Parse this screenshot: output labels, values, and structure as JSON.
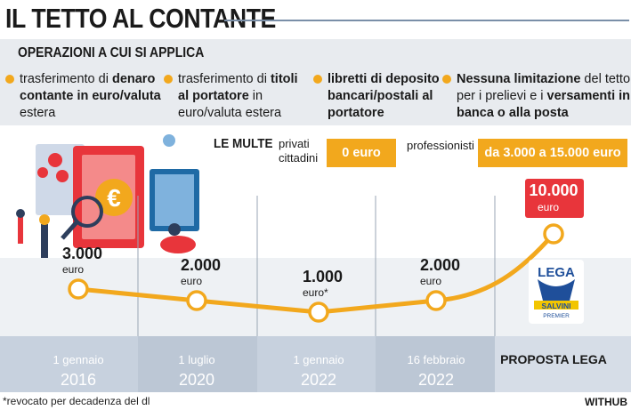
{
  "title": "IL TETTO AL CONTANTE",
  "operations": {
    "heading": "OPERAZIONI A CUI SI APPLICA",
    "items": [
      {
        "pre": "trasferimento di ",
        "bold": "denaro contante in euro/valuta",
        "post": " estera"
      },
      {
        "pre": "trasferimento di ",
        "bold": "titoli al portatore",
        "post": " in euro/valuta estera"
      },
      {
        "pre": "",
        "bold": "libretti di deposito bancari/postali al portatore",
        "post": ""
      },
      {
        "pre": "",
        "bold": "Nessuna limitazione",
        "post": " del tetto per i prelievi e i ",
        "bold2": "versamenti in banca o alla posta"
      }
    ]
  },
  "fines": {
    "label": "LE MULTE",
    "private_label": "privati cittadini",
    "private_value": "0 euro",
    "professional_label": "professionisti",
    "professional_value": "da 3.000 a 15.000 euro"
  },
  "chart_data": {
    "type": "line",
    "categories": [
      "1 gennaio 2016",
      "1 luglio 2020",
      "1 gennaio 2022",
      "16 febbraio 2022",
      "PROPOSTA LEGA"
    ],
    "x_labels": [
      {
        "line1": "1 gennaio",
        "line2": "2016"
      },
      {
        "line1": "1 luglio",
        "line2": "2020"
      },
      {
        "line1": "1 gennaio",
        "line2": "2022"
      },
      {
        "line1": "16 febbraio",
        "line2": "2022"
      },
      {
        "line1": "PROPOSTA LEGA",
        "line2": ""
      }
    ],
    "series": [
      {
        "values": [
          3000,
          2000,
          1000,
          2000,
          10000
        ]
      }
    ],
    "value_labels": [
      {
        "value": "3.000",
        "unit": "euro"
      },
      {
        "value": "2.000",
        "unit": "euro"
      },
      {
        "value": "1.000",
        "unit": "euro*"
      },
      {
        "value": "2.000",
        "unit": "euro"
      },
      {
        "value": "10.000",
        "unit": "euro"
      }
    ]
  },
  "lega_logo": {
    "top": "LEGA",
    "bottom": "SALVINI",
    "sub": "PREMIER"
  },
  "footnote": "*revocato per decadenza del dl",
  "brand": "WITHUB",
  "colors": {
    "accent": "#f2a81d",
    "highlight": "#e8353b",
    "band": "#b7c3d2",
    "lega_blue": "#1f4f9a"
  }
}
